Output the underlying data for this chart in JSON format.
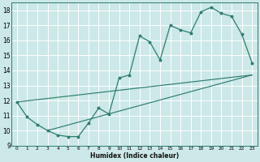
{
  "xlabel": "Humidex (Indice chaleur)",
  "ylabel": "",
  "bg_color": "#cce8e8",
  "grid_color": "#ffffff",
  "line_color": "#2e7d6e",
  "xlim": [
    -0.5,
    23.5
  ],
  "ylim": [
    9,
    18.5
  ],
  "xticks": [
    0,
    1,
    2,
    3,
    4,
    5,
    6,
    7,
    8,
    9,
    10,
    11,
    12,
    13,
    14,
    15,
    16,
    17,
    18,
    19,
    20,
    21,
    22,
    23
  ],
  "yticks": [
    9,
    10,
    11,
    12,
    13,
    14,
    15,
    16,
    17,
    18
  ],
  "series1_x": [
    0,
    1,
    2,
    3,
    4,
    5,
    6,
    7,
    8,
    9,
    10,
    11,
    12,
    13,
    14,
    15,
    16,
    17,
    18,
    19,
    20,
    21,
    22,
    23
  ],
  "series1_y": [
    11.9,
    10.9,
    10.4,
    10.0,
    9.7,
    9.6,
    9.6,
    10.5,
    11.5,
    11.1,
    13.5,
    13.7,
    16.3,
    15.9,
    14.7,
    17.0,
    16.7,
    16.5,
    17.9,
    18.2,
    17.8,
    17.6,
    16.4,
    14.5
  ],
  "series2_x": [
    0,
    23
  ],
  "series2_y": [
    11.9,
    13.7
  ],
  "series3_x": [
    3,
    23
  ],
  "series3_y": [
    10.0,
    13.7
  ]
}
